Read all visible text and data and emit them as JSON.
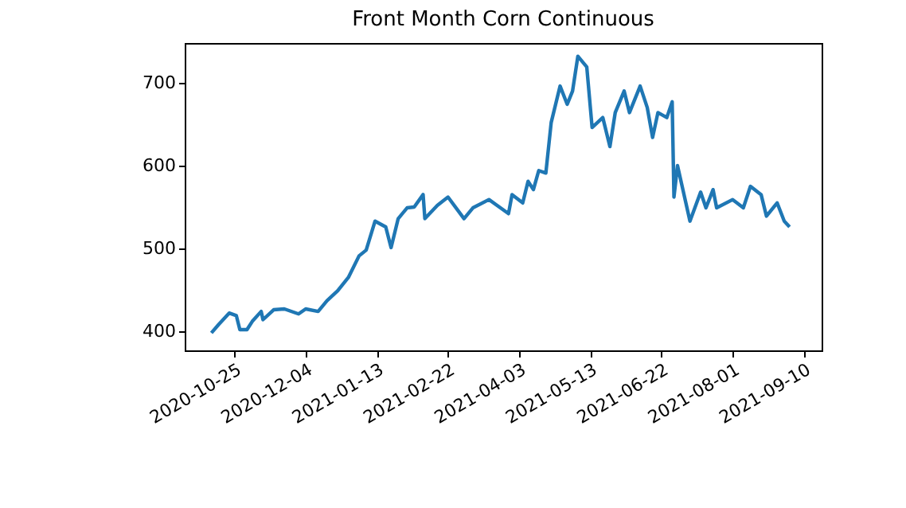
{
  "chart_data": {
    "type": "line",
    "title": "Front Month Corn Continuous",
    "x": [
      "2020-10-12",
      "2020-10-16",
      "2020-10-22",
      "2020-10-26",
      "2020-10-28",
      "2020-11-01",
      "2020-11-04",
      "2020-11-09",
      "2020-11-10",
      "2020-11-16",
      "2020-11-22",
      "2020-11-30",
      "2020-12-04",
      "2020-12-11",
      "2020-12-16",
      "2020-12-22",
      "2020-12-28",
      "2021-01-03",
      "2021-01-07",
      "2021-01-12",
      "2021-01-18",
      "2021-01-21",
      "2021-01-25",
      "2021-01-30",
      "2021-02-03",
      "2021-02-08",
      "2021-02-09",
      "2021-02-16",
      "2021-02-22",
      "2021-03-03",
      "2021-03-08",
      "2021-03-17",
      "2021-03-28",
      "2021-03-30",
      "2021-04-05",
      "2021-04-08",
      "2021-04-11",
      "2021-04-14",
      "2021-04-18",
      "2021-04-21",
      "2021-04-26",
      "2021-04-30",
      "2021-05-03",
      "2021-05-06",
      "2021-05-11",
      "2021-05-14",
      "2021-05-20",
      "2021-05-24",
      "2021-05-27",
      "2021-06-01",
      "2021-06-04",
      "2021-06-10",
      "2021-06-14",
      "2021-06-17",
      "2021-06-20",
      "2021-06-25",
      "2021-06-28",
      "2021-06-29",
      "2021-07-01",
      "2021-07-08",
      "2021-07-14",
      "2021-07-17",
      "2021-07-21",
      "2021-07-23",
      "2021-08-01",
      "2021-08-07",
      "2021-08-11",
      "2021-08-17",
      "2021-08-20",
      "2021-08-26",
      "2021-08-30",
      "2021-09-02"
    ],
    "series": [
      {
        "color": "#1f77b4",
        "values": [
          398,
          408,
          422,
          419,
          402,
          402,
          412,
          424,
          414,
          426,
          427,
          421,
          427,
          424,
          437,
          449,
          465,
          491,
          498,
          533,
          526,
          501,
          536,
          549,
          550,
          565,
          536,
          552,
          562,
          536,
          549,
          559,
          542,
          565,
          555,
          581,
          571,
          594,
          591,
          652,
          696,
          674,
          690,
          732,
          719,
          646,
          658,
          623,
          664,
          690,
          664,
          696,
          670,
          634,
          664,
          658,
          677,
          562,
          600,
          533,
          568,
          549,
          571,
          549,
          559,
          549,
          575,
          565,
          539,
          555,
          533,
          526
        ]
      }
    ],
    "xlim": [
      "2020-09-27",
      "2021-09-20"
    ],
    "xticks": [
      "2020-10-25",
      "2020-12-04",
      "2021-01-13",
      "2021-02-22",
      "2021-04-03",
      "2021-05-13",
      "2021-06-22",
      "2021-08-01",
      "2021-09-10"
    ],
    "ylim": [
      377,
      748
    ],
    "yticks": [
      400,
      500,
      600,
      700
    ],
    "grid": false,
    "legend": false,
    "marker": "none",
    "line_style": "solid"
  }
}
